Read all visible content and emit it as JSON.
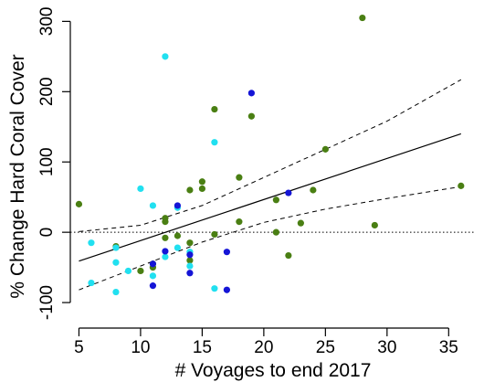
{
  "chart_data": {
    "type": "scatter",
    "xlabel": "# Voyages to end 2017",
    "ylabel": "% Change Hard Coral Cover",
    "xlim": [
      4.3,
      37.2
    ],
    "ylim": [
      -135,
      320
    ],
    "x_ticks": [
      5,
      10,
      15,
      20,
      25,
      30,
      35
    ],
    "y_ticks": [
      -100,
      0,
      100,
      200,
      300
    ],
    "grid": false,
    "axis_style": "open (left and bottom axes only)",
    "reference_line": {
      "y": 0,
      "style": "dotted",
      "color": "#000000"
    },
    "colors": {
      "green": "#4a7f13",
      "cyan": "#21e0f0",
      "blue": "#1515d6"
    },
    "series": [
      {
        "color": "#4a7f13",
        "points": [
          [
            5,
            40
          ],
          [
            8,
            -20
          ],
          [
            10,
            -55
          ],
          [
            11,
            -45
          ],
          [
            11,
            -50
          ],
          [
            12,
            15
          ],
          [
            12,
            20
          ],
          [
            12,
            -8
          ],
          [
            13,
            -5
          ],
          [
            14,
            60
          ],
          [
            14,
            -15
          ],
          [
            14,
            -40
          ],
          [
            15,
            62
          ],
          [
            15,
            72
          ],
          [
            16,
            175
          ],
          [
            16,
            -3
          ],
          [
            18,
            78
          ],
          [
            18,
            15
          ],
          [
            19,
            165
          ],
          [
            21,
            46
          ],
          [
            21,
            0
          ],
          [
            22,
            -33
          ],
          [
            23,
            13
          ],
          [
            24,
            60
          ],
          [
            25,
            118
          ],
          [
            28,
            305
          ],
          [
            29,
            10
          ],
          [
            36,
            66
          ]
        ]
      },
      {
        "color": "#21e0f0",
        "points": [
          [
            6,
            -15
          ],
          [
            6,
            -72
          ],
          [
            8,
            -22
          ],
          [
            8,
            -43
          ],
          [
            8,
            -85
          ],
          [
            9,
            -55
          ],
          [
            10,
            62
          ],
          [
            11,
            38
          ],
          [
            11,
            -62
          ],
          [
            12,
            250
          ],
          [
            12,
            -35
          ],
          [
            13,
            35
          ],
          [
            13,
            -22
          ],
          [
            14,
            -28
          ],
          [
            14,
            -48
          ],
          [
            16,
            128
          ],
          [
            16,
            -80
          ]
        ]
      },
      {
        "color": "#1515d6",
        "points": [
          [
            11,
            -45
          ],
          [
            11,
            -76
          ],
          [
            12,
            -27
          ],
          [
            13,
            38
          ],
          [
            14,
            -32
          ],
          [
            14,
            -58
          ],
          [
            17,
            -28
          ],
          [
            17,
            -82
          ],
          [
            19,
            198
          ],
          [
            22,
            56
          ]
        ]
      }
    ],
    "fit": {
      "x": [
        5,
        36
      ],
      "y": [
        -41,
        140
      ],
      "style": "solid"
    },
    "confidence_band": {
      "x": [
        5,
        10,
        15,
        20,
        25,
        30,
        36
      ],
      "upper": [
        1,
        10,
        38,
        78,
        118,
        158,
        217
      ],
      "lower": [
        -82,
        -48,
        -14,
        14,
        33,
        48,
        65
      ],
      "style": "dashed"
    }
  }
}
